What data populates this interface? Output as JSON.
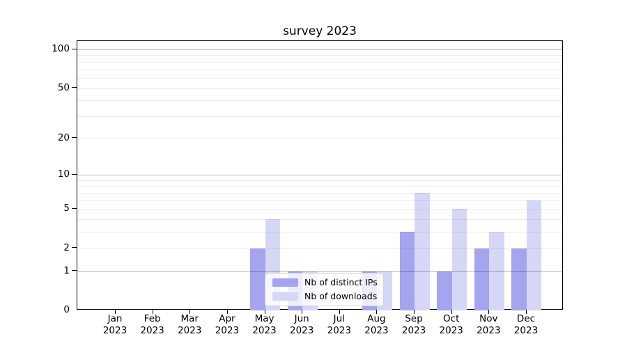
{
  "title": "survey 2023",
  "chart_data": {
    "type": "bar",
    "title": "survey 2023",
    "categories": [
      "Jan 2023",
      "Feb 2023",
      "Mar 2023",
      "Apr 2023",
      "May 2023",
      "Jun 2023",
      "Jul 2023",
      "Aug 2023",
      "Sep 2023",
      "Oct 2023",
      "Nov 2023",
      "Dec 2023"
    ],
    "series": [
      {
        "name": "Nb of distinct IPs",
        "color": "#a4a4ef",
        "values": [
          0,
          0,
          0,
          0,
          2,
          1,
          0,
          1,
          3,
          1,
          2,
          2
        ]
      },
      {
        "name": "Nb of downloads",
        "color": "#d6d6f7",
        "values": [
          0,
          0,
          0,
          0,
          4,
          1,
          0,
          1,
          7,
          5,
          3,
          6
        ]
      }
    ],
    "yscale": "log1p",
    "ylim": [
      0,
      117
    ],
    "yticks": [
      0,
      1,
      2,
      5,
      10,
      20,
      50,
      100
    ],
    "grid": {
      "major": [
        1,
        10,
        100
      ],
      "minor": [
        2,
        3,
        4,
        5,
        6,
        7,
        8,
        9,
        20,
        30,
        40,
        50,
        60,
        70,
        80,
        90
      ]
    },
    "legend_position": "lower center",
    "xlabel": "",
    "ylabel": ""
  },
  "colors": {
    "axis": "#000000",
    "grid_major": "#bdbdbd",
    "grid_minor": "#ebebeb",
    "background": "#ffffff"
  }
}
